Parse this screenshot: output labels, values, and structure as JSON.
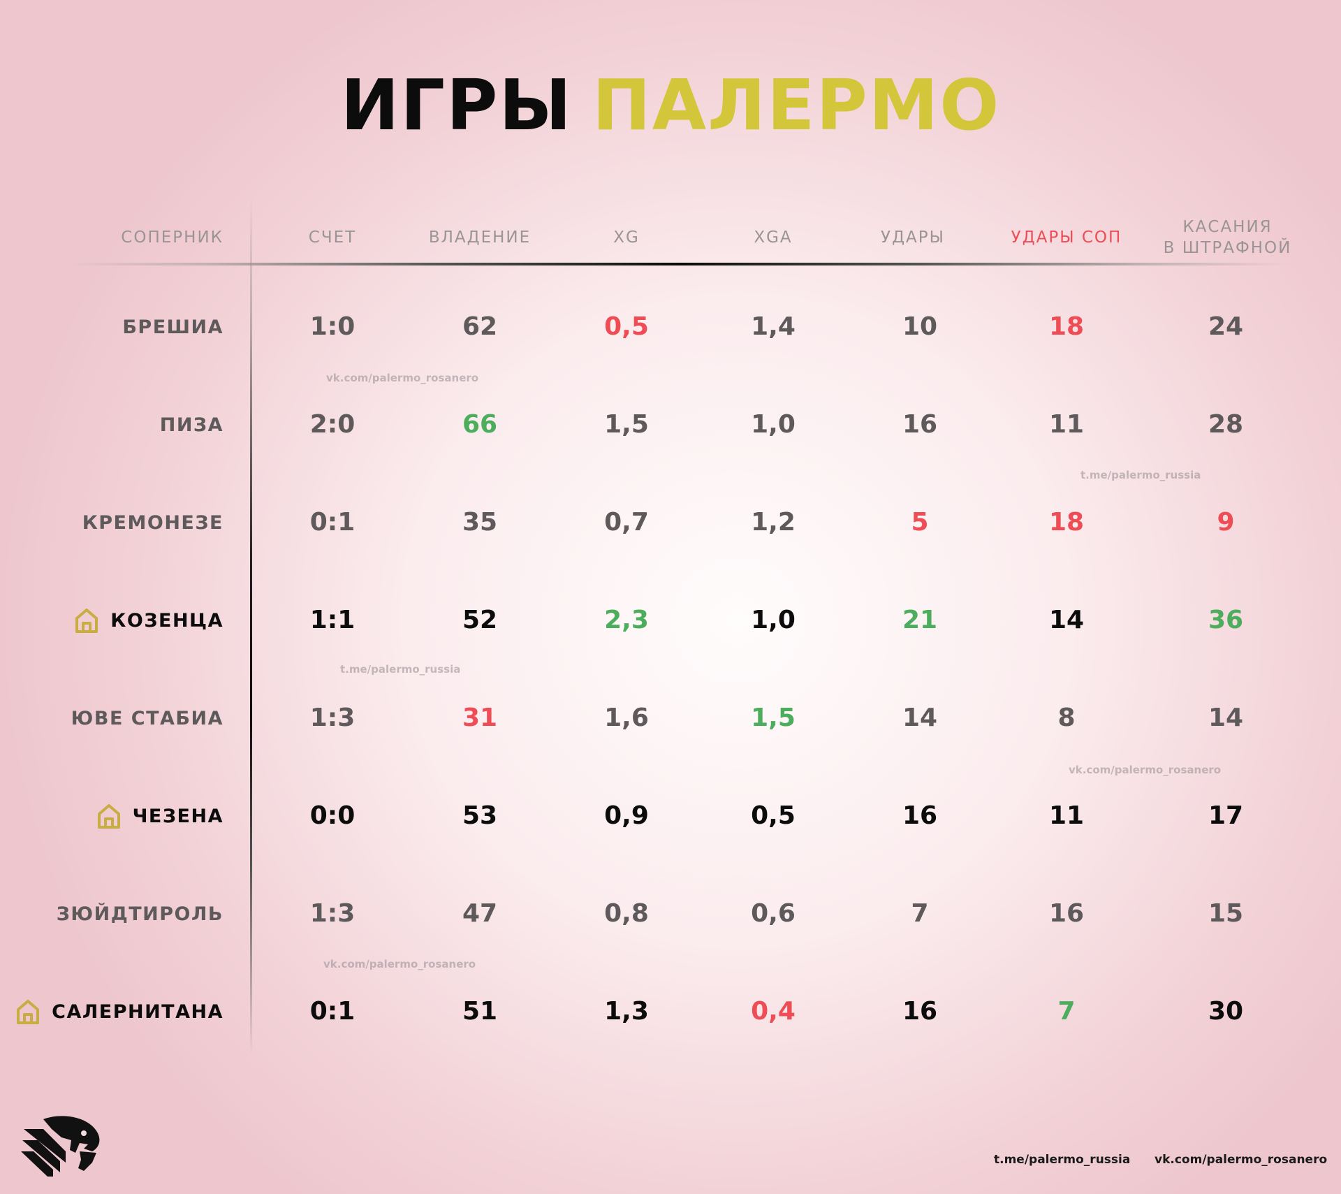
{
  "title": {
    "part1": "ИГРЫ",
    "part2": "ПАЛЕРМО"
  },
  "headers": {
    "opponent": "СОПЕРНИК",
    "score": "СЧЕТ",
    "possession": "ВЛАДЕНИЕ",
    "xg": "XG",
    "xga": "XGA",
    "shots": "УДАРЫ",
    "opp_shots": "УДАРЫ СОП",
    "box_touches_line1": "КАСАНИЯ",
    "box_touches_line2": "В ШТРАФНОЙ"
  },
  "colors": {
    "title_dark": "#0c0c0c",
    "title_accent": "#d4c63a",
    "text_gray": "#5e5a5c",
    "text_black": "#0c0c0c",
    "good_green": "#4cae5c",
    "bad_red": "#ee4d55",
    "home_icon": "#c8ad45"
  },
  "rows": [
    {
      "team": "БРЕШИА",
      "home": false,
      "score": "1:0",
      "possession": "62",
      "xg": "0,5",
      "xga": "1,4",
      "shots": "10",
      "opp_shots": "18",
      "box_touches": "24",
      "colors": [
        "gray",
        "gray",
        "red",
        "gray",
        "gray",
        "red",
        "gray"
      ]
    },
    {
      "team": "ПИЗА",
      "home": false,
      "score": "2:0",
      "possession": "66",
      "xg": "1,5",
      "xga": "1,0",
      "shots": "16",
      "opp_shots": "11",
      "box_touches": "28",
      "colors": [
        "gray",
        "green",
        "gray",
        "gray",
        "gray",
        "gray",
        "gray"
      ]
    },
    {
      "team": "КРЕМОНЕЗЕ",
      "home": false,
      "score": "0:1",
      "possession": "35",
      "xg": "0,7",
      "xga": "1,2",
      "shots": "5",
      "opp_shots": "18",
      "box_touches": "9",
      "colors": [
        "gray",
        "gray",
        "gray",
        "gray",
        "red",
        "red",
        "red"
      ]
    },
    {
      "team": "КОЗЕНЦА",
      "home": true,
      "score": "1:1",
      "possession": "52",
      "xg": "2,3",
      "xga": "1,0",
      "shots": "21",
      "opp_shots": "14",
      "box_touches": "36",
      "colors": [
        "black",
        "black",
        "green",
        "black",
        "green",
        "black",
        "green"
      ]
    },
    {
      "team": "ЮВЕ СТАБИА",
      "home": false,
      "score": "1:3",
      "possession": "31",
      "xg": "1,6",
      "xga": "1,5",
      "shots": "14",
      "opp_shots": "8",
      "box_touches": "14",
      "colors": [
        "gray",
        "red",
        "gray",
        "green",
        "gray",
        "gray",
        "gray"
      ]
    },
    {
      "team": "ЧЕЗЕНА",
      "home": true,
      "score": "0:0",
      "possession": "53",
      "xg": "0,9",
      "xga": "0,5",
      "shots": "16",
      "opp_shots": "11",
      "box_touches": "17",
      "colors": [
        "black",
        "black",
        "black",
        "black",
        "black",
        "black",
        "black"
      ]
    },
    {
      "team": "ЗЮЙДТИРОЛЬ",
      "home": false,
      "score": "1:3",
      "possession": "47",
      "xg": "0,8",
      "xga": "0,6",
      "shots": "7",
      "opp_shots": "16",
      "box_touches": "15",
      "colors": [
        "gray",
        "gray",
        "gray",
        "gray",
        "gray",
        "gray",
        "gray"
      ]
    },
    {
      "team": "САЛЕРНИТАНА",
      "home": true,
      "score": "0:1",
      "possession": "51",
      "xg": "1,3",
      "xga": "0,4",
      "shots": "16",
      "opp_shots": "7",
      "box_touches": "30",
      "colors": [
        "black",
        "black",
        "black",
        "red",
        "black",
        "green",
        "black"
      ]
    }
  ],
  "watermarks": [
    "vk.com/palermo_rosanero",
    "t.me/palermo_russia",
    "t.me/palermo_russia",
    "vk.com/palermo_rosanero",
    "vk.com/palermo_rosanero"
  ],
  "footer": {
    "telegram": "t.me/palermo_russia",
    "vk": "vk.com/palermo_rosanero"
  },
  "icons": {
    "home": "home-icon",
    "logo": "palermo-eagle-logo"
  }
}
